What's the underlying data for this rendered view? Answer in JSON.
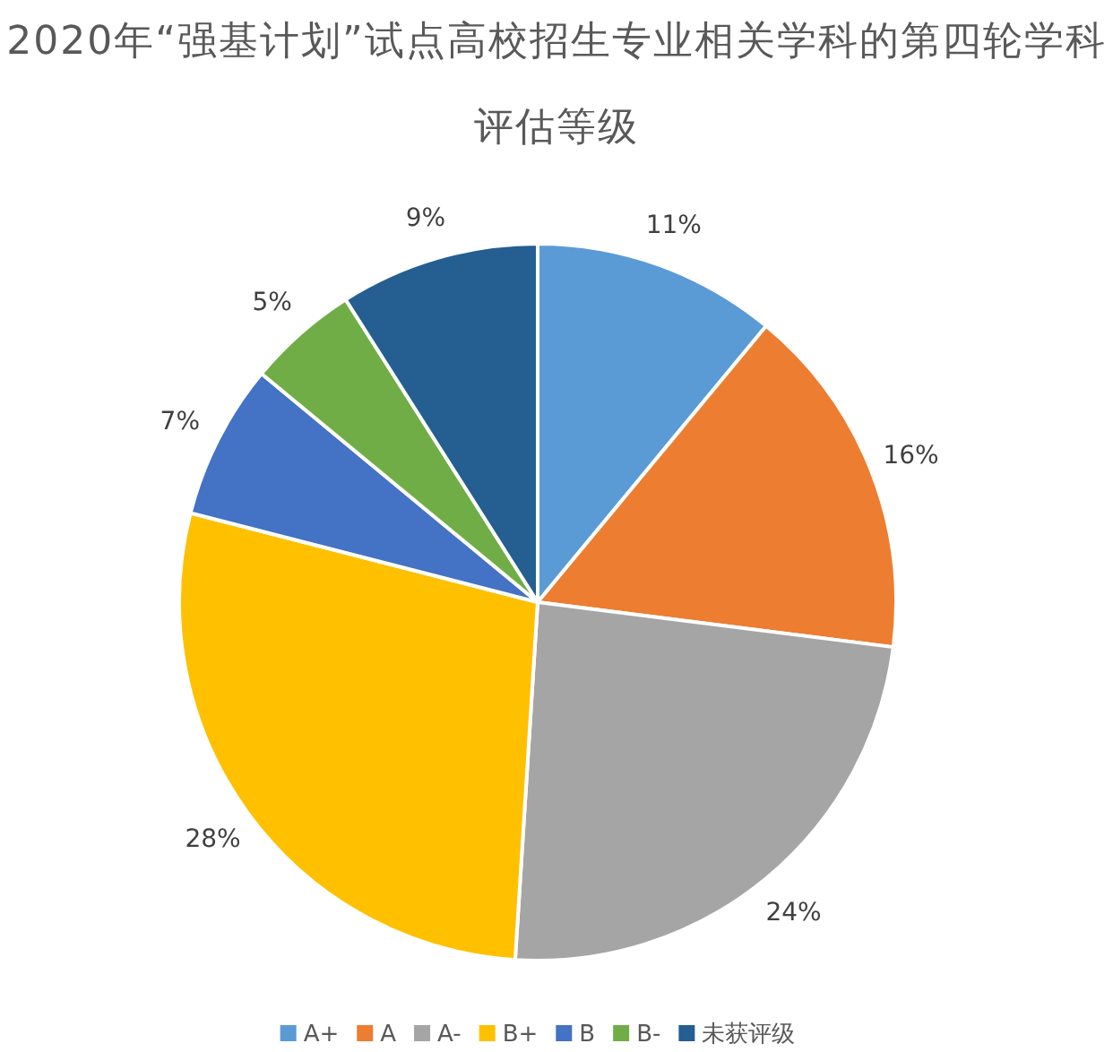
{
  "chart_data": {
    "type": "pie",
    "title": "2020年“强基计划”试点高校招生专业相关学科的第四轮学科评估等级",
    "categories": [
      "A+",
      "A",
      "A-",
      "B+",
      "B",
      "B-",
      "未获评级"
    ],
    "values": [
      11,
      16,
      24,
      28,
      7,
      5,
      9
    ],
    "value_labels": [
      "11%",
      "16%",
      "24%",
      "28%",
      "7%",
      "5%",
      "9%"
    ],
    "colors": [
      "#5b9bd5",
      "#ed7d31",
      "#a5a5a5",
      "#ffc000",
      "#4472c4",
      "#70ad47",
      "#255e91"
    ],
    "legend": "bottom"
  }
}
